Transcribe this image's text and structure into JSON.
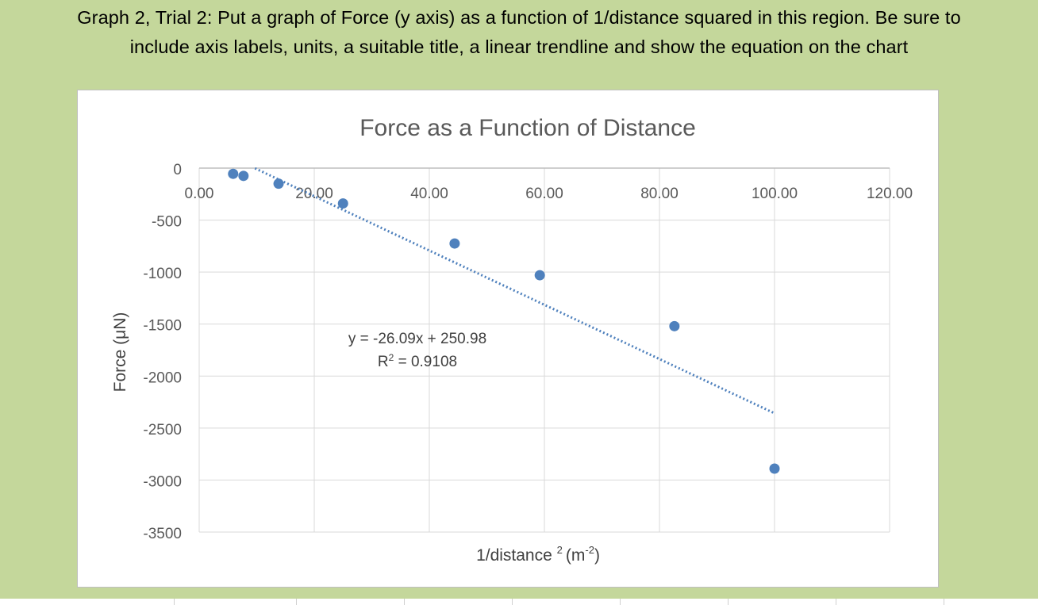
{
  "instructions": {
    "line1": "Graph 2, Trial 2: Put a graph of Force (y axis) as a function of 1/distance squared in this region.  Be sure to",
    "line2": "include axis labels, units, a suitable title, a linear trendline and show the equation on the chart"
  },
  "chart_data": {
    "type": "scatter",
    "title": "Force as a Function of Distance",
    "xlabel": "1/distance",
    "xlabel_sup": "2",
    "xlabel_unit": "(m",
    "xlabel_unit_sup": "-2",
    "xlabel_unit_close": ")",
    "ylabel": "Force (μN)",
    "xlim": [
      0,
      120
    ],
    "ylim": [
      -3500,
      0
    ],
    "x_ticks": [
      0,
      20,
      40,
      60,
      80,
      100,
      120
    ],
    "x_tick_labels": [
      "0.00",
      "20.00",
      "40.00",
      "60.00",
      "80.00",
      "100.00",
      "120.00"
    ],
    "y_ticks": [
      0,
      -500,
      -1000,
      -1500,
      -2000,
      -2500,
      -3000,
      -3500
    ],
    "y_tick_labels": [
      "0",
      "-500",
      "-1000",
      "-1500",
      "-2000",
      "-2500",
      "-3000",
      "-3500"
    ],
    "grid": true,
    "point_color": "#4f81bd",
    "x": [
      5.9,
      7.7,
      13.8,
      25.0,
      44.4,
      59.2,
      82.6,
      100.0
    ],
    "y": [
      -55,
      -75,
      -150,
      -340,
      -725,
      -1030,
      -1520,
      -2890
    ],
    "trendline": {
      "type": "linear",
      "slope": -26.09,
      "intercept": 250.98,
      "x_range": [
        9.7,
        100.0
      ],
      "style": "dotted",
      "equation": "y = -26.09x + 250.98",
      "r2_prefix": "R",
      "r2_sup": "2",
      "r2_value": " = 0.9108"
    }
  }
}
